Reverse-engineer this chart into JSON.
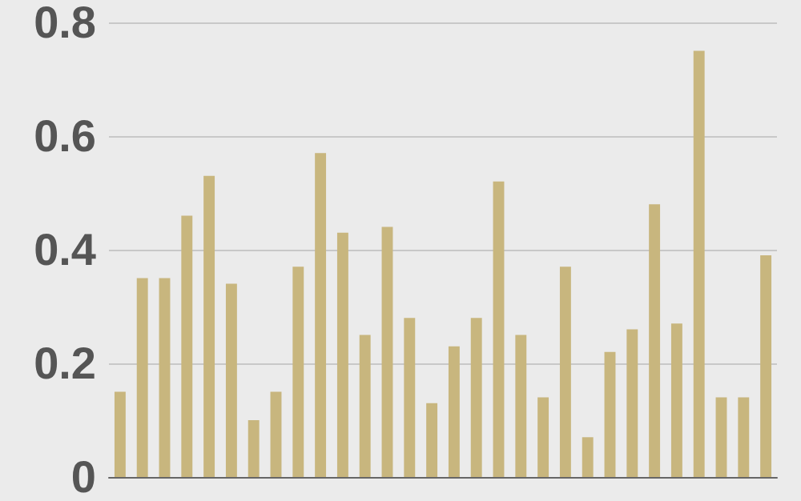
{
  "chart_data": {
    "type": "bar",
    "categories": [
      null,
      null,
      null,
      null,
      null,
      null,
      null,
      null,
      null,
      null,
      null,
      null,
      null,
      null,
      null,
      null,
      null,
      null,
      null,
      null,
      null,
      null,
      null,
      null,
      null,
      null,
      null,
      null,
      null,
      null
    ],
    "values": [
      0.15,
      0.35,
      0.35,
      0.46,
      0.53,
      0.34,
      0.1,
      0.15,
      0.37,
      0.57,
      0.43,
      0.25,
      0.44,
      0.28,
      0.13,
      0.23,
      0.28,
      0.52,
      0.25,
      0.14,
      0.37,
      0.07,
      0.22,
      0.26,
      0.48,
      0.27,
      0.75,
      0.14,
      0.14,
      0.39
    ],
    "color": "#c8b67e",
    "ylim": [
      0,
      0.8
    ],
    "yticks": [
      0,
      0.2,
      0.4,
      0.6,
      0.8
    ],
    "grid": "y"
  }
}
